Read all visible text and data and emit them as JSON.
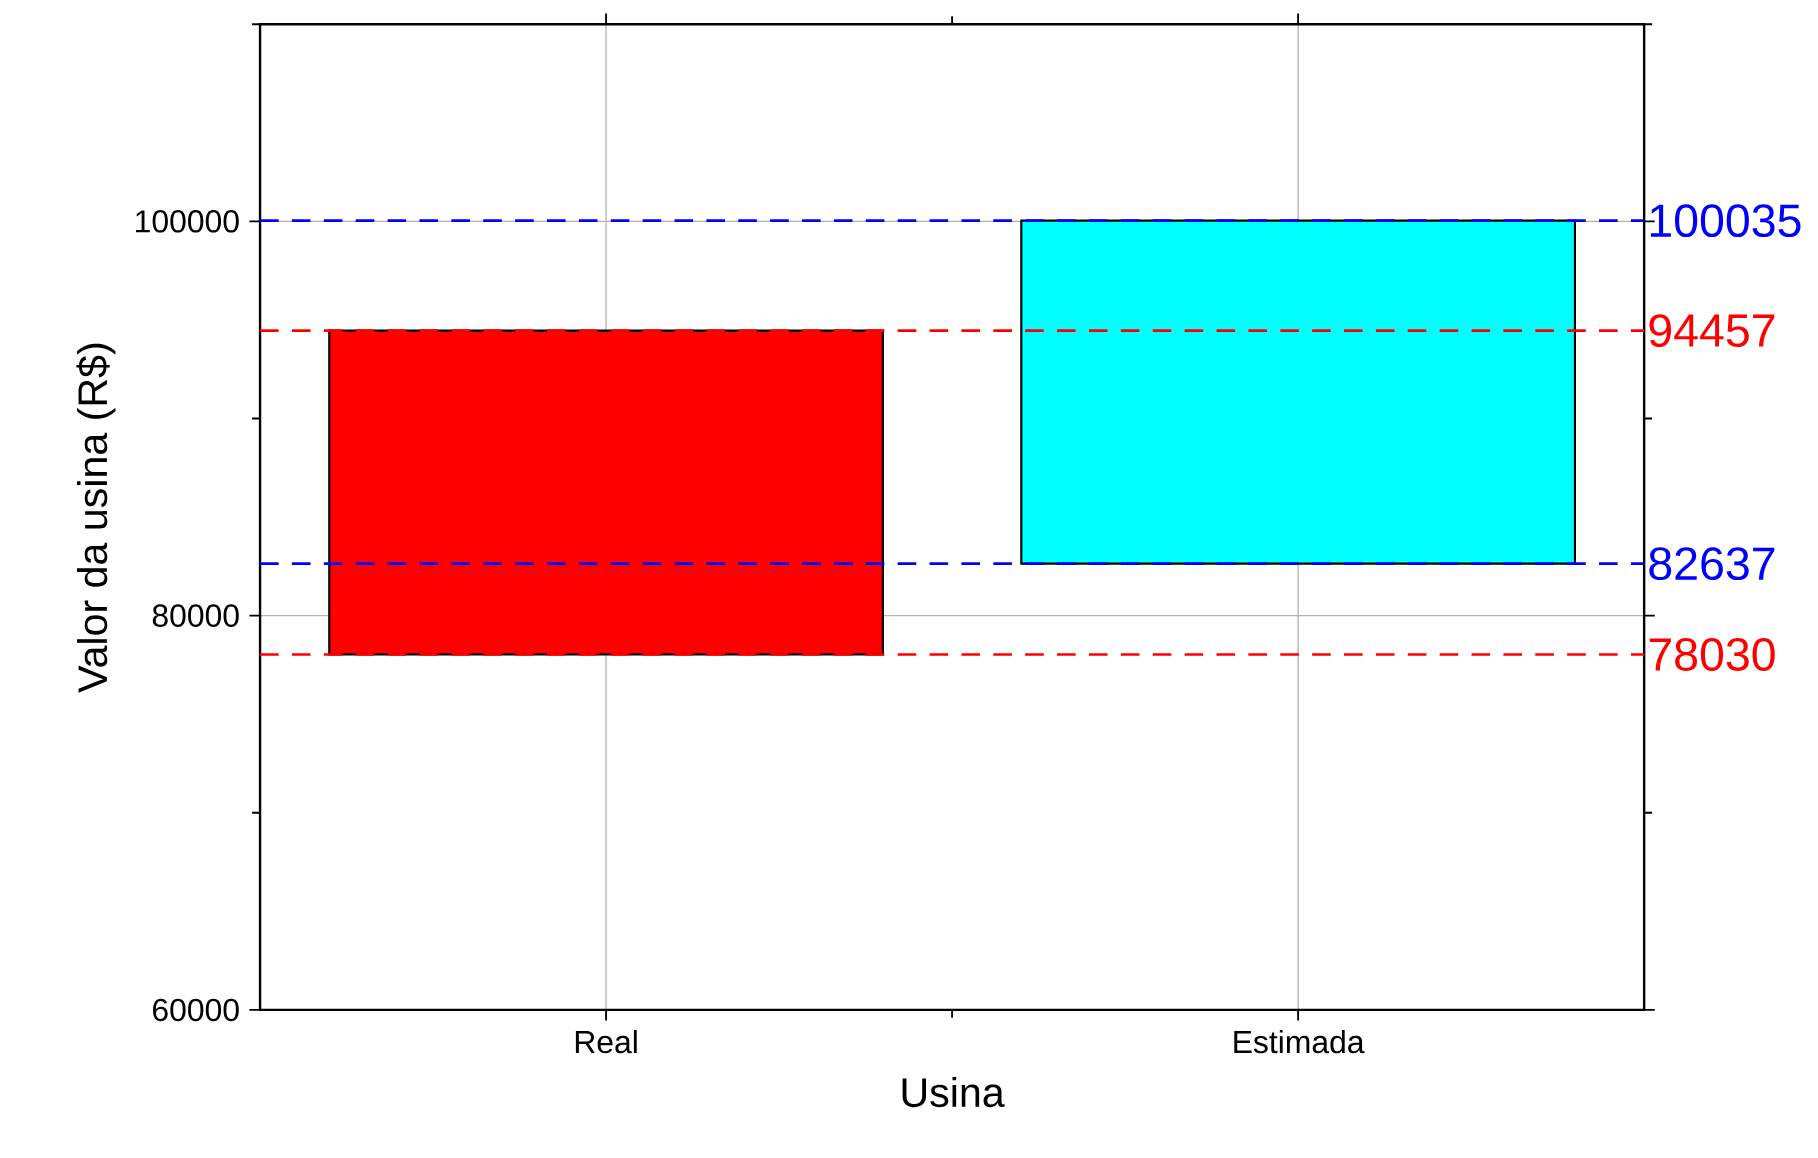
{
  "chart_data": {
    "type": "bar",
    "xlabel": "Usina",
    "ylabel": "Valor da usina (R$)",
    "categories": [
      "Real",
      "Estimada"
    ],
    "base": [
      78030,
      82637
    ],
    "values": [
      16427,
      17398
    ],
    "colors": [
      "#ff0000",
      "#00ffff"
    ],
    "ylim": [
      60000,
      110000
    ],
    "yticks": [
      60000,
      {
        "value": 70000,
        "label": null
      },
      80000,
      {
        "value": 90000,
        "label": null
      },
      100000,
      {
        "value": 110000,
        "label": null
      }
    ],
    "grid": true,
    "ref_lines": [
      {
        "axis": "y",
        "value": 100035,
        "label": "100035",
        "color": "#0000ff",
        "line_style": "dashed"
      },
      {
        "axis": "y",
        "value": 94457,
        "label": "94457",
        "color": "#ff0000",
        "line_style": "dashed"
      },
      {
        "axis": "y",
        "value": 82637,
        "label": "82637",
        "color": "#0000ff",
        "line_style": "dashed"
      },
      {
        "axis": "y",
        "value": 78030,
        "label": "78030",
        "color": "#ff0000",
        "line_style": "dashed"
      }
    ]
  }
}
